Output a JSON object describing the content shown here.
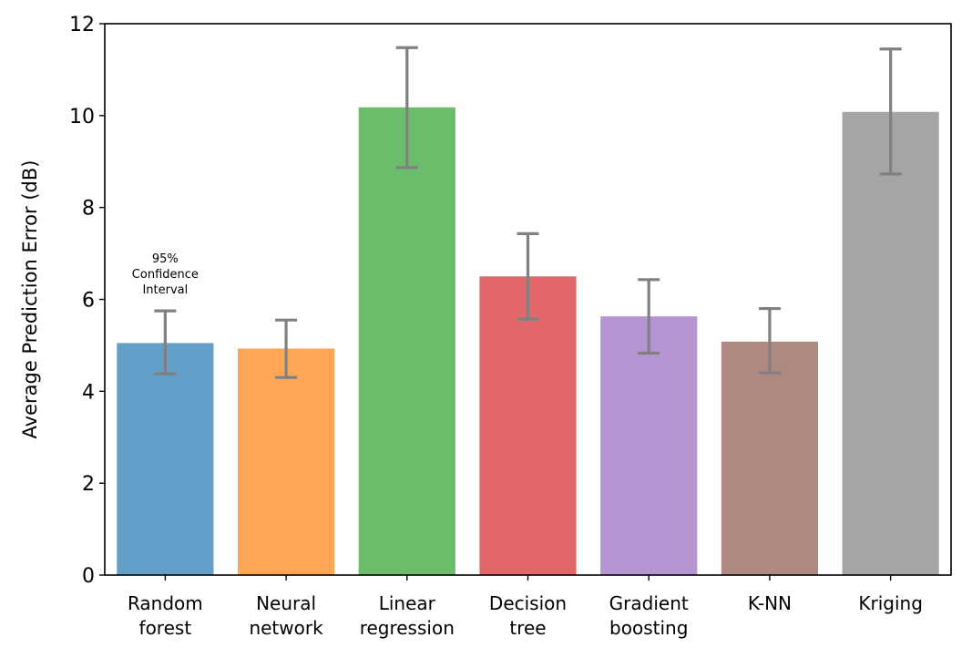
{
  "chart_data": {
    "type": "bar",
    "title": "",
    "xlabel": "",
    "ylabel": "Average Prediction Error (dB)",
    "ylim": [
      0,
      12
    ],
    "yticks": [
      0,
      2,
      4,
      6,
      8,
      10,
      12
    ],
    "grid": false,
    "categories": [
      [
        "Random",
        "forest"
      ],
      [
        "Neural",
        "network"
      ],
      [
        "Linear",
        "regression"
      ],
      [
        "Decision",
        "tree"
      ],
      [
        "Gradient",
        "boosting"
      ],
      [
        "K-NN"
      ],
      [
        "Kriging"
      ]
    ],
    "values": [
      5.05,
      4.93,
      10.18,
      6.5,
      5.63,
      5.08,
      10.08
    ],
    "error_low": [
      4.38,
      4.3,
      8.87,
      5.57,
      4.83,
      4.4,
      8.73
    ],
    "error_high": [
      5.75,
      5.55,
      11.48,
      7.43,
      6.43,
      5.8,
      11.45
    ],
    "colors": [
      "#1f77b4",
      "#ff7f0e",
      "#2ca02c",
      "#d62728",
      "#9467bd",
      "#8c564b",
      "#7f7f7f"
    ],
    "bar_opacity": 0.7,
    "error_color": "#808080",
    "annotation": {
      "lines": [
        "95%",
        "Confidence",
        "Interval"
      ],
      "category_index": 0
    }
  }
}
